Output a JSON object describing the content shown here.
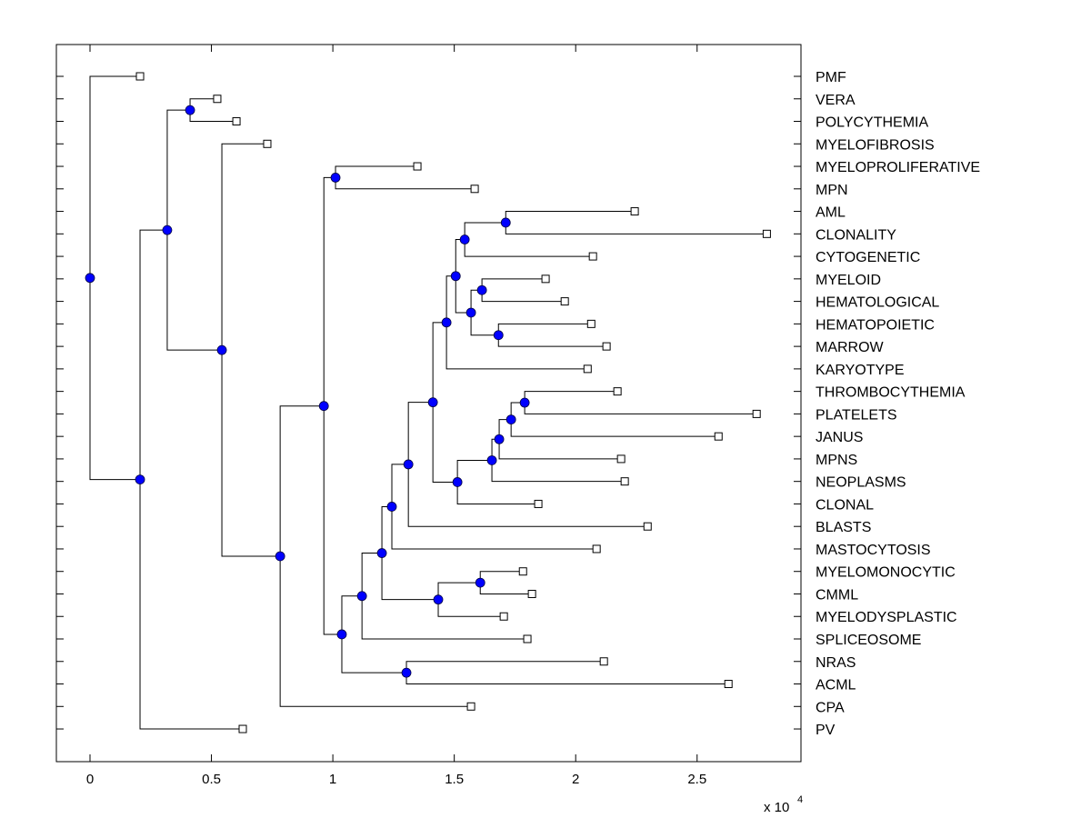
{
  "chart_data": {
    "type": "dendrogram",
    "title": "",
    "xlabel": "",
    "ylabel": "",
    "x_scale_label": "x 10",
    "x_scale_exponent": "4",
    "xlim": [
      -0.14,
      2.94
    ],
    "x_ticks": [
      0,
      0.5,
      1,
      1.5,
      2,
      2.5
    ],
    "x_tick_labels": [
      "0",
      "0.5",
      "1",
      "1.5",
      "2",
      "2.5"
    ],
    "grid": false,
    "node_marker_color": "#0000ff",
    "leaf_marker": "square-open",
    "leaves": [
      {
        "label": "PMF",
        "x": 0.206
      },
      {
        "label": "VERA",
        "x": 0.524
      },
      {
        "label": "POLYCYTHEMIA",
        "x": 0.603
      },
      {
        "label": "MYELOFIBROSIS",
        "x": 0.73
      },
      {
        "label": "MYELOPROLIFERATIVE",
        "x": 1.348
      },
      {
        "label": "MPN",
        "x": 1.584
      },
      {
        "label": "AML",
        "x": 2.243
      },
      {
        "label": "CLONALITY",
        "x": 2.787
      },
      {
        "label": "CYTOGENETIC",
        "x": 2.071
      },
      {
        "label": "MYELOID",
        "x": 1.876
      },
      {
        "label": "HEMATOLOGICAL",
        "x": 1.955
      },
      {
        "label": "HEMATOPOIETIC",
        "x": 2.064
      },
      {
        "label": "MARROW",
        "x": 2.127
      },
      {
        "label": "KARYOTYPE",
        "x": 2.049
      },
      {
        "label": "THROMBOCYTHEMIA",
        "x": 2.172
      },
      {
        "label": "PLATELETS",
        "x": 2.745
      },
      {
        "label": "JANUS",
        "x": 2.588
      },
      {
        "label": "MPNS",
        "x": 2.187
      },
      {
        "label": "NEOPLASMS",
        "x": 2.202
      },
      {
        "label": "CLONAL",
        "x": 1.846
      },
      {
        "label": "BLASTS",
        "x": 2.296
      },
      {
        "label": "MASTOCYTOSIS",
        "x": 2.086
      },
      {
        "label": "MYELOMONOCYTIC",
        "x": 1.783
      },
      {
        "label": "CMML",
        "x": 1.82
      },
      {
        "label": "MYELODYSPLASTIC",
        "x": 1.704
      },
      {
        "label": "SPLICEOSOME",
        "x": 1.801
      },
      {
        "label": "NRAS",
        "x": 2.116
      },
      {
        "label": "ACML",
        "x": 2.629
      },
      {
        "label": "CPA",
        "x": 1.569
      },
      {
        "label": "PV",
        "x": 0.629
      }
    ],
    "internal_nodes": [
      {
        "id": "n0",
        "x": 0.0,
        "children": [
          "L0",
          "n1"
        ]
      },
      {
        "id": "n1",
        "x": 0.206,
        "children": [
          "n2",
          "L29"
        ]
      },
      {
        "id": "n2",
        "x": 0.318,
        "children": [
          "n3",
          "n4"
        ]
      },
      {
        "id": "n3",
        "x": 0.412,
        "children": [
          "L1",
          "L2"
        ]
      },
      {
        "id": "n4",
        "x": 0.543,
        "children": [
          "L3",
          "n5"
        ]
      },
      {
        "id": "n5",
        "x": 0.783,
        "children": [
          "n6",
          "L28"
        ]
      },
      {
        "id": "n6",
        "x": 0.963,
        "children": [
          "n7",
          "n8"
        ]
      },
      {
        "id": "n7",
        "x": 1.011,
        "children": [
          "L4",
          "L5"
        ]
      },
      {
        "id": "n8",
        "x": 1.037,
        "children": [
          "n9",
          "n27"
        ]
      },
      {
        "id": "n9",
        "x": 1.12,
        "children": [
          "n10",
          "L25"
        ]
      },
      {
        "id": "n10",
        "x": 1.202,
        "children": [
          "n11",
          "n25"
        ]
      },
      {
        "id": "n11",
        "x": 1.243,
        "children": [
          "n12",
          "L21"
        ]
      },
      {
        "id": "n12",
        "x": 1.311,
        "children": [
          "n13",
          "L20"
        ]
      },
      {
        "id": "n13",
        "x": 1.412,
        "children": [
          "n14",
          "n20"
        ]
      },
      {
        "id": "n14",
        "x": 1.468,
        "children": [
          "n15",
          "L13"
        ]
      },
      {
        "id": "n15",
        "x": 1.506,
        "children": [
          "n16",
          "n18"
        ]
      },
      {
        "id": "n16",
        "x": 1.543,
        "children": [
          "n17",
          "L8"
        ]
      },
      {
        "id": "n17",
        "x": 1.712,
        "children": [
          "L6",
          "L7"
        ]
      },
      {
        "id": "n18",
        "x": 1.569,
        "children": [
          "n19",
          "n19b"
        ]
      },
      {
        "id": "n19",
        "x": 1.614,
        "children": [
          "L9",
          "L10"
        ]
      },
      {
        "id": "n19b",
        "x": 1.682,
        "children": [
          "L11",
          "L12"
        ]
      },
      {
        "id": "n20",
        "x": 1.513,
        "children": [
          "n21",
          "L19"
        ]
      },
      {
        "id": "n21",
        "x": 1.655,
        "children": [
          "n22",
          "L18"
        ]
      },
      {
        "id": "n22",
        "x": 1.685,
        "children": [
          "n23",
          "L17"
        ]
      },
      {
        "id": "n23",
        "x": 1.734,
        "children": [
          "n24",
          "L16"
        ]
      },
      {
        "id": "n24",
        "x": 1.79,
        "children": [
          "L14",
          "L15"
        ]
      },
      {
        "id": "n25",
        "x": 1.434,
        "children": [
          "n26",
          "L24"
        ]
      },
      {
        "id": "n26",
        "x": 1.607,
        "children": [
          "L22",
          "L23"
        ]
      },
      {
        "id": "n27",
        "x": 1.303,
        "children": [
          "L26",
          "L27"
        ]
      }
    ]
  }
}
